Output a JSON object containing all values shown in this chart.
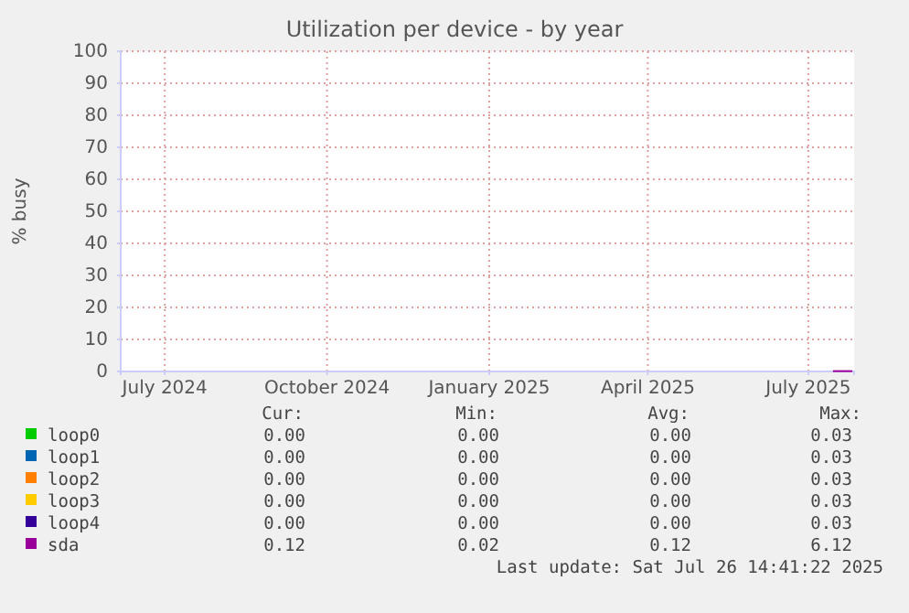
{
  "chart_data": {
    "type": "line",
    "title": "Utilization per device - by year",
    "ylabel": "% busy",
    "xlim": [
      "2024-06-06",
      "2025-07-27"
    ],
    "ylim": [
      0,
      100
    ],
    "xticks": [
      {
        "value": "2024-07-01",
        "label": "July 2024"
      },
      {
        "value": "2024-10-01",
        "label": "October 2024"
      },
      {
        "value": "2025-01-01",
        "label": "January 2025"
      },
      {
        "value": "2025-04-01",
        "label": "April 2025"
      },
      {
        "value": "2025-07-01",
        "label": "July 2025"
      }
    ],
    "yticks": [
      0,
      10,
      20,
      30,
      40,
      50,
      60,
      70,
      80,
      90,
      100
    ],
    "grid": true,
    "legend": "bottom",
    "series": [
      {
        "name": "loop0",
        "color": "#00cc00"
      },
      {
        "name": "loop1",
        "color": "#0066b3"
      },
      {
        "name": "loop2",
        "color": "#ff8000"
      },
      {
        "name": "loop3",
        "color": "#ffcc00"
      },
      {
        "name": "loop4",
        "color": "#330099"
      },
      {
        "name": "sda",
        "color": "#990099",
        "x": [
          "2025-07-15",
          "2025-07-20",
          "2025-07-26"
        ],
        "values": [
          0.1,
          0.1,
          0.1
        ]
      }
    ],
    "annotations": [
      "Cur:",
      "Min:",
      "Avg:",
      "Max:",
      "0.00",
      "0.00",
      "0.00",
      "0.03",
      "0.00",
      "0.00",
      "0.00",
      "0.03",
      "0.00",
      "0.00",
      "0.00",
      "0.03",
      "0.00",
      "0.00",
      "0.00",
      "0.03",
      "0.00",
      "0.00",
      "0.00",
      "0.03",
      "0.12",
      "0.02",
      "0.12",
      "6.12",
      "Last update: Sat Jul 26 14:41:22 2025"
    ]
  }
}
